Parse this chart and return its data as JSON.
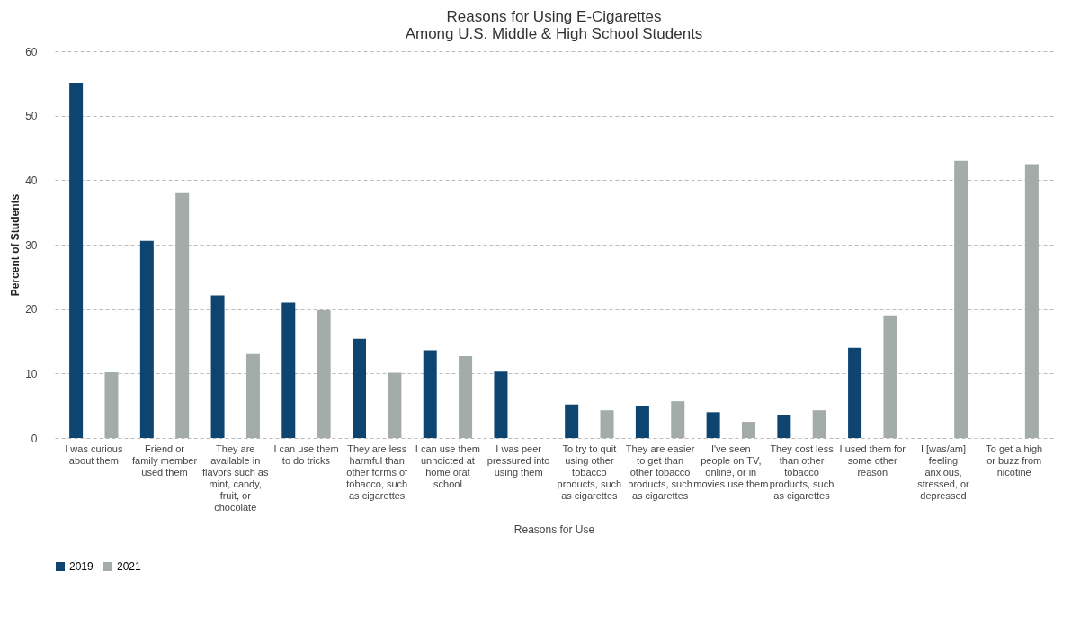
{
  "chart_data": {
    "type": "bar",
    "title": [
      "Reasons for Using E-Cigarettes",
      "Among U.S. Middle & High School Students"
    ],
    "xlabel": "Reasons for Use",
    "ylabel": "Percent of Students",
    "categories": [
      "I was curious about them",
      "Friend or family member used them",
      "They are available in flavors such as mint, candy, fruit, or chocolate",
      "I can use them to do tricks",
      "They are less harmful than other forms of tobacco, such as cigarettes",
      "I can use them unnoicted at home orat school",
      "I was peer pressured into using them",
      "To try to quit using other tobacco products, such as cigarettes",
      "They are easier to get than other tobacco products, such as cigarettes",
      "I've seen people on TV, online, or in movies use them",
      "They cost less than other tobacco products, such as cigarettes",
      "I used them for some other reason",
      "I [was/am] feeling anxious, stressed, or depressed",
      "To get a high or buzz from nicotine"
    ],
    "series": [
      {
        "name": "2019",
        "color": "#0d4470",
        "values": [
          55.1,
          30.6,
          22.1,
          21.0,
          15.4,
          13.6,
          10.3,
          5.2,
          5.0,
          4.0,
          3.5,
          14.0,
          null,
          null
        ]
      },
      {
        "name": "2021",
        "color": "#a3aca9",
        "values": [
          10.2,
          38.0,
          13.0,
          19.8,
          10.1,
          12.7,
          null,
          4.3,
          5.7,
          2.5,
          4.3,
          19.0,
          43.0,
          42.5
        ]
      }
    ],
    "ylim": [
      0,
      60
    ],
    "yticks": [
      0,
      10,
      20,
      30,
      40,
      50,
      60
    ],
    "grid": "y",
    "legend": "bottom"
  }
}
